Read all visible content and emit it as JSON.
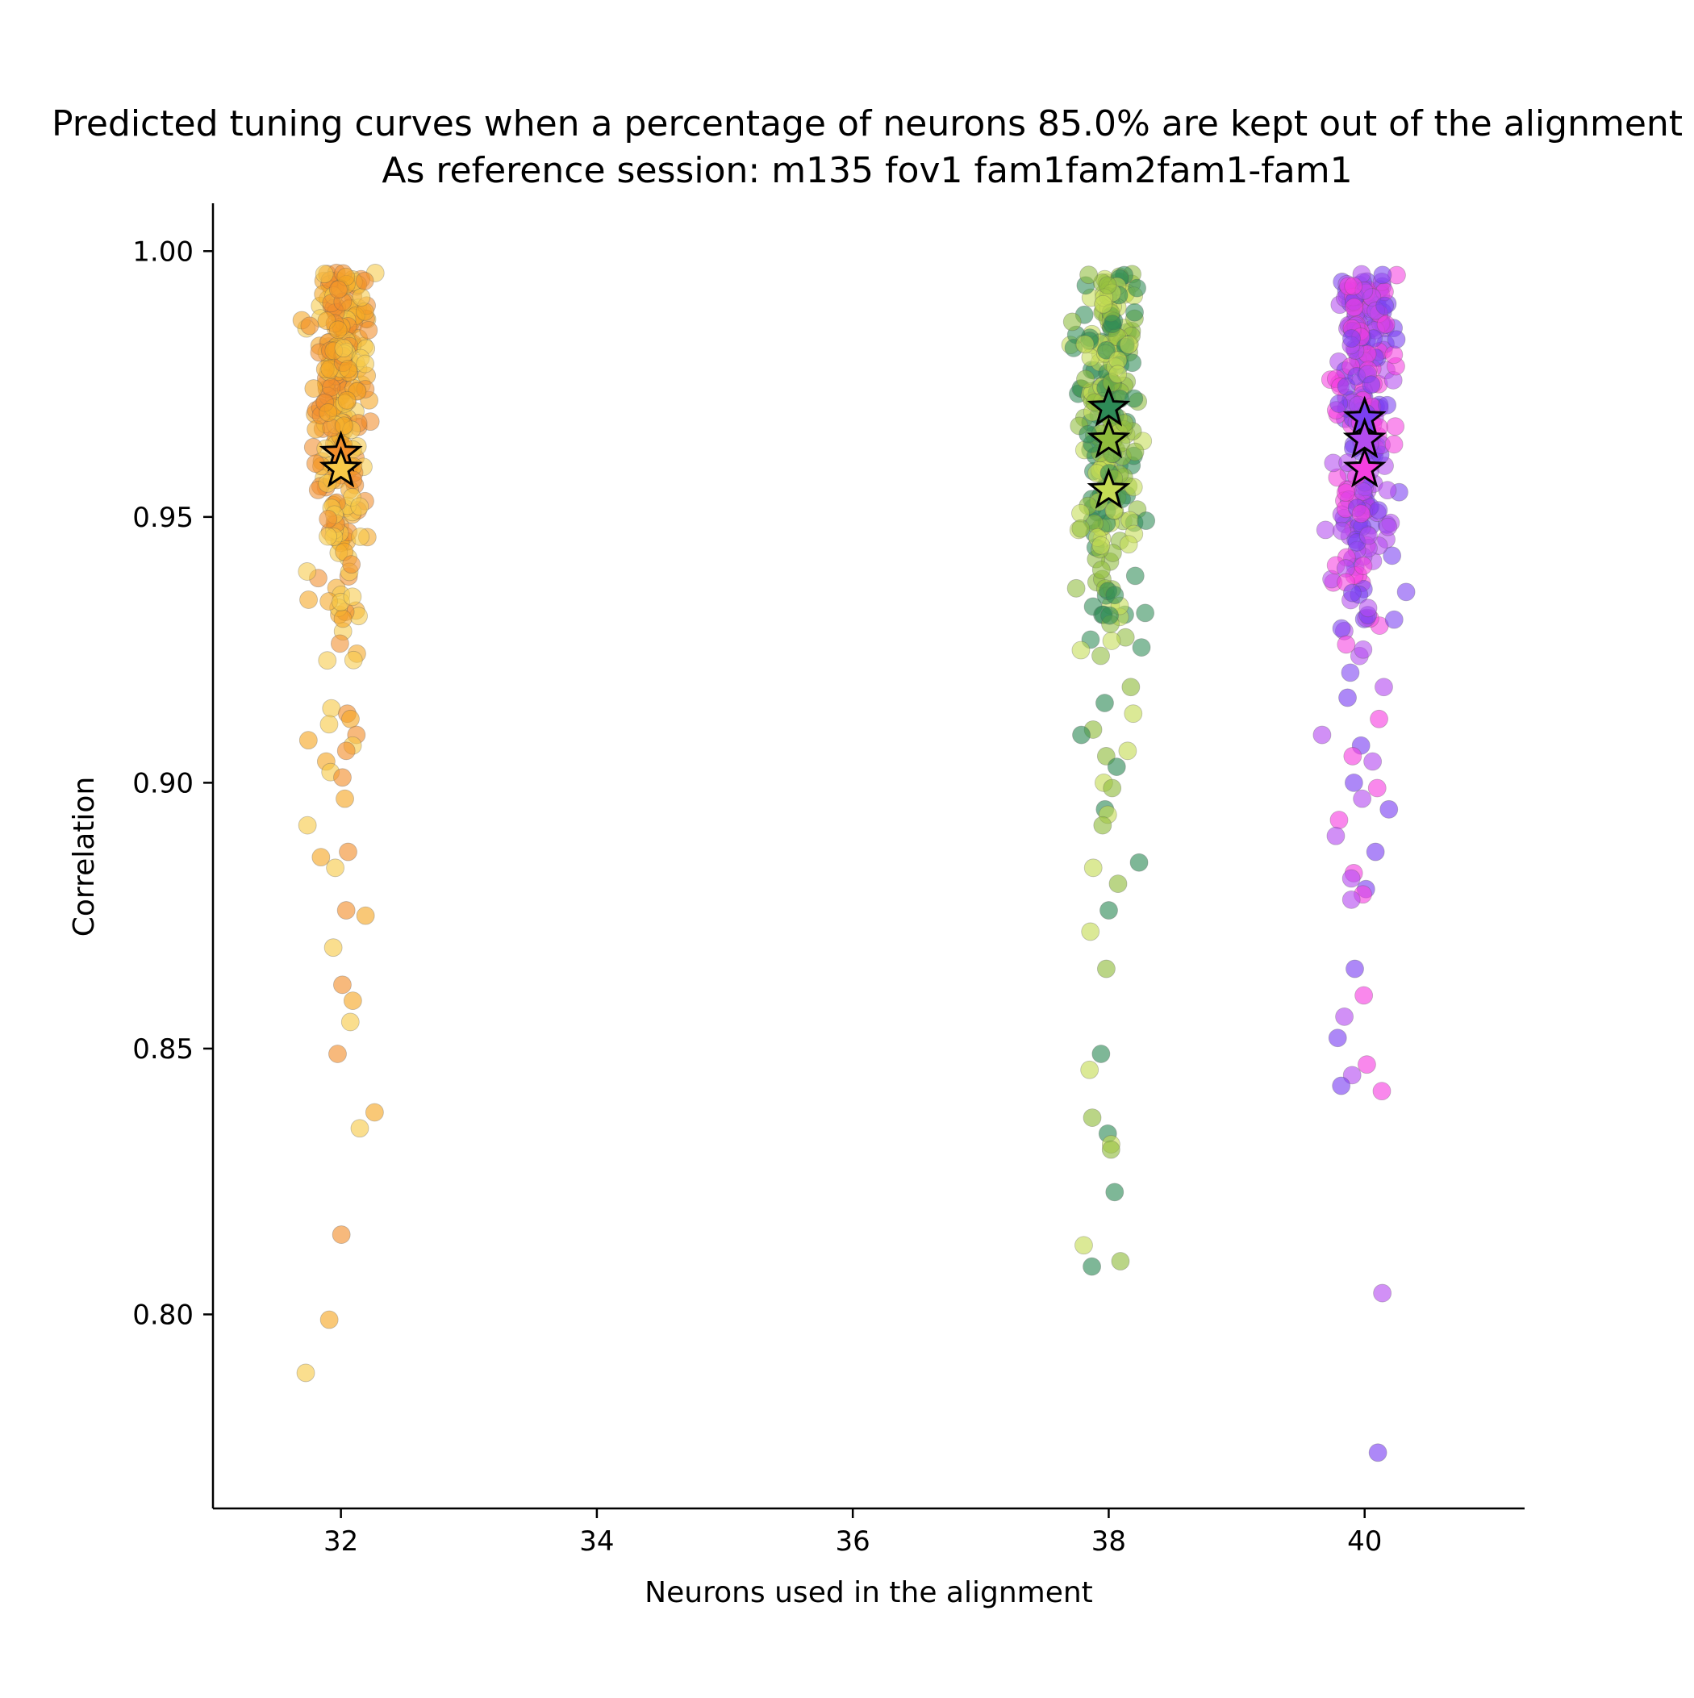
{
  "chart_data": {
    "type": "scatter",
    "title": "Predicted tuning curves when a percentage of neurons 85.0% are kept out of the alignment",
    "subtitle": "As reference session: m135 fov1 fam1fam2fam1-fam1",
    "xlabel": "Neurons used in the alignment",
    "ylabel": "Correlation",
    "xlim": [
      31.0,
      41.25
    ],
    "ylim": [
      0.7635,
      1.009
    ],
    "x_ticks": [
      "32",
      "34",
      "36",
      "38",
      "40"
    ],
    "y_ticks": [
      "0.80",
      "0.85",
      "0.90",
      "0.95",
      "1.00"
    ],
    "grid": false,
    "legend": "none",
    "groups": [
      {
        "x": 32,
        "colors": [
          "#f5a623",
          "#f7c948",
          "#f28e2b"
        ],
        "upper_range": [
          0.92,
          0.996
        ],
        "tail": [
          0.914,
          0.913,
          0.912,
          0.911,
          0.909,
          0.908,
          0.907,
          0.906,
          0.904,
          0.902,
          0.901,
          0.897,
          0.892,
          0.887,
          0.886,
          0.884,
          0.876,
          0.875,
          0.869,
          0.862,
          0.859,
          0.855,
          0.849,
          0.838,
          0.835,
          0.815,
          0.799,
          0.789
        ],
        "stars": [
          {
            "y": 0.962,
            "color": "#f28e2b"
          },
          {
            "y": 0.959,
            "color": "#f7c948"
          }
        ]
      },
      {
        "x": 38,
        "colors": [
          "#c5dc55",
          "#8fbc3c",
          "#2e8b57"
        ],
        "upper_range": [
          0.92,
          0.996
        ],
        "tail": [
          0.918,
          0.915,
          0.913,
          0.91,
          0.909,
          0.906,
          0.905,
          0.903,
          0.9,
          0.899,
          0.895,
          0.894,
          0.892,
          0.885,
          0.884,
          0.881,
          0.876,
          0.872,
          0.865,
          0.849,
          0.846,
          0.837,
          0.834,
          0.832,
          0.831,
          0.823,
          0.813,
          0.81,
          0.809
        ],
        "stars": [
          {
            "y": 0.9705,
            "color": "#2e8b57"
          },
          {
            "y": 0.9645,
            "color": "#8fbc3c"
          },
          {
            "y": 0.955,
            "color": "#c5dc55"
          }
        ]
      },
      {
        "x": 40,
        "colors": [
          "#f53fe0",
          "#b44cf0",
          "#7b3ff2"
        ],
        "upper_range": [
          0.92,
          0.996
        ],
        "tail": [
          0.918,
          0.916,
          0.912,
          0.909,
          0.907,
          0.905,
          0.904,
          0.9,
          0.899,
          0.897,
          0.895,
          0.893,
          0.89,
          0.887,
          0.883,
          0.882,
          0.88,
          0.879,
          0.878,
          0.865,
          0.86,
          0.856,
          0.852,
          0.847,
          0.845,
          0.843,
          0.842,
          0.804,
          0.774
        ],
        "stars": [
          {
            "y": 0.9685,
            "color": "#7b3ff2"
          },
          {
            "y": 0.9645,
            "color": "#b44cf0"
          },
          {
            "y": 0.959,
            "color": "#f53fe0"
          }
        ]
      }
    ]
  }
}
